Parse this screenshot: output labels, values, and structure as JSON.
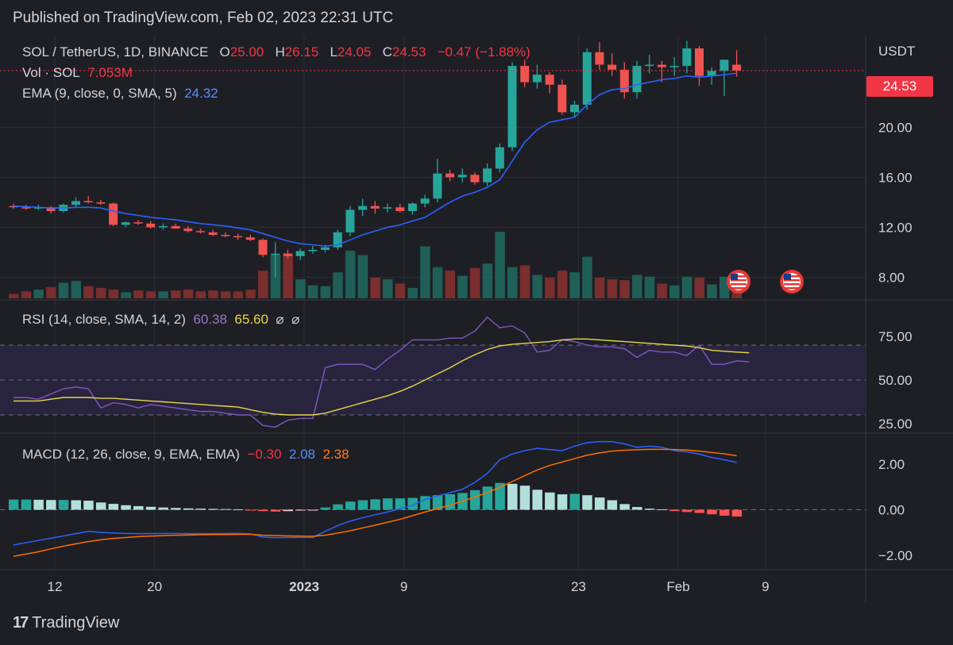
{
  "header": {
    "published": "Published on TradingView.com, Feb 02, 2023 22:31 UTC"
  },
  "legend": {
    "symbol": "SOL / TetherUS, 1D, BINANCE",
    "o_label": "O",
    "o": "25.00",
    "h_label": "H",
    "h": "26.15",
    "l_label": "L",
    "l": "24.05",
    "c_label": "C",
    "c": "24.53",
    "change": "−0.47 (−1.88%)",
    "vol_label": "Vol · SOL",
    "vol": "7.053M",
    "ema_label": "EMA (9, close, 0, SMA, 5)",
    "ema": "24.32",
    "rsi_label": "RSI (14, close, SMA, 14, 2)",
    "rsi": "60.38",
    "rsi_sma": "65.60",
    "rsi_na1": "⌀",
    "rsi_na2": "⌀",
    "macd_label": "MACD (12, 26, close, 9, EMA, EMA)",
    "macd_hist": "−0.30",
    "macd": "2.08",
    "macd_signal": "2.38"
  },
  "price_tag": "24.53",
  "currency": "USDT",
  "footer": {
    "brand": "TradingView",
    "brand_mark": "17"
  },
  "colors": {
    "up": "#26a69a",
    "down": "#ef5350",
    "ema": "#2962ff",
    "rsi": "#7e57c2",
    "rsi_sma": "#e8d74a",
    "macd": "#2962ff",
    "signal": "#ff6d00",
    "bg": "#1e1f25"
  },
  "chart_data": [
    {
      "type": "candlestick",
      "title": "SOL / TetherUS, 1D, BINANCE",
      "x_ticks": [
        {
          "label": "12",
          "day": 0
        },
        {
          "label": "20",
          "day": 8
        },
        {
          "label": "2023",
          "day": 20
        },
        {
          "label": "9",
          "day": 28
        },
        {
          "label": "23",
          "day": 42
        },
        {
          "label": "Feb",
          "day": 50
        },
        {
          "label": "9",
          "day": 57
        }
      ],
      "y_ticks": [
        "8.00",
        "12.00",
        "16.00",
        "20.00"
      ],
      "ylim": [
        6.2,
        27.0
      ],
      "candles": [
        {
          "o": 13.7,
          "h": 13.9,
          "l": 13.5,
          "c": 13.6
        },
        {
          "o": 13.6,
          "h": 13.8,
          "l": 13.4,
          "c": 13.5
        },
        {
          "o": 13.5,
          "h": 13.8,
          "l": 13.4,
          "c": 13.6
        },
        {
          "o": 13.6,
          "h": 13.7,
          "l": 13.1,
          "c": 13.3
        },
        {
          "o": 13.3,
          "h": 13.9,
          "l": 13.2,
          "c": 13.8
        },
        {
          "o": 13.8,
          "h": 14.4,
          "l": 13.6,
          "c": 14.1
        },
        {
          "o": 14.1,
          "h": 14.5,
          "l": 13.9,
          "c": 14.0
        },
        {
          "o": 14.0,
          "h": 14.2,
          "l": 13.8,
          "c": 13.9
        },
        {
          "o": 13.9,
          "h": 14.0,
          "l": 12.1,
          "c": 12.2
        },
        {
          "o": 12.2,
          "h": 12.5,
          "l": 12.0,
          "c": 12.4
        },
        {
          "o": 12.4,
          "h": 12.6,
          "l": 12.2,
          "c": 12.3
        },
        {
          "o": 12.3,
          "h": 12.5,
          "l": 11.9,
          "c": 12.0
        },
        {
          "o": 12.0,
          "h": 12.3,
          "l": 11.8,
          "c": 12.1
        },
        {
          "o": 12.1,
          "h": 12.3,
          "l": 11.9,
          "c": 11.9
        },
        {
          "o": 11.9,
          "h": 12.1,
          "l": 11.6,
          "c": 11.7
        },
        {
          "o": 11.7,
          "h": 11.9,
          "l": 11.5,
          "c": 11.6
        },
        {
          "o": 11.6,
          "h": 11.8,
          "l": 11.3,
          "c": 11.4
        },
        {
          "o": 11.4,
          "h": 11.6,
          "l": 11.2,
          "c": 11.3
        },
        {
          "o": 11.3,
          "h": 11.5,
          "l": 11.0,
          "c": 11.2
        },
        {
          "o": 11.2,
          "h": 11.4,
          "l": 10.9,
          "c": 11.0
        },
        {
          "o": 11.0,
          "h": 11.1,
          "l": 9.6,
          "c": 9.8
        },
        {
          "o": 9.8,
          "h": 10.8,
          "l": 8.0,
          "c": 9.9
        },
        {
          "o": 9.9,
          "h": 10.2,
          "l": 9.5,
          "c": 9.7
        },
        {
          "o": 9.7,
          "h": 10.3,
          "l": 9.4,
          "c": 10.1
        },
        {
          "o": 10.1,
          "h": 10.5,
          "l": 9.9,
          "c": 10.2
        },
        {
          "o": 10.2,
          "h": 10.6,
          "l": 10.0,
          "c": 10.4
        },
        {
          "o": 10.4,
          "h": 11.8,
          "l": 10.2,
          "c": 11.6
        },
        {
          "o": 11.6,
          "h": 13.7,
          "l": 11.3,
          "c": 13.4
        },
        {
          "o": 13.4,
          "h": 14.3,
          "l": 12.9,
          "c": 13.7
        },
        {
          "o": 13.7,
          "h": 14.1,
          "l": 13.1,
          "c": 13.5
        },
        {
          "o": 13.5,
          "h": 13.9,
          "l": 13.2,
          "c": 13.6
        },
        {
          "o": 13.6,
          "h": 13.9,
          "l": 13.2,
          "c": 13.3
        },
        {
          "o": 13.3,
          "h": 14.0,
          "l": 13.0,
          "c": 13.9
        },
        {
          "o": 13.9,
          "h": 14.6,
          "l": 13.6,
          "c": 14.3
        },
        {
          "o": 14.3,
          "h": 17.5,
          "l": 14.0,
          "c": 16.3
        },
        {
          "o": 16.3,
          "h": 16.6,
          "l": 15.7,
          "c": 16.0
        },
        {
          "o": 16.0,
          "h": 16.7,
          "l": 15.6,
          "c": 16.2
        },
        {
          "o": 16.2,
          "h": 16.4,
          "l": 15.4,
          "c": 15.6
        },
        {
          "o": 15.6,
          "h": 17.1,
          "l": 15.3,
          "c": 16.7
        },
        {
          "o": 16.7,
          "h": 18.7,
          "l": 16.4,
          "c": 18.4
        },
        {
          "o": 18.4,
          "h": 25.2,
          "l": 18.1,
          "c": 24.9
        },
        {
          "o": 24.9,
          "h": 25.4,
          "l": 23.2,
          "c": 23.6
        },
        {
          "o": 23.6,
          "h": 25.0,
          "l": 23.1,
          "c": 24.2
        },
        {
          "o": 24.2,
          "h": 24.4,
          "l": 22.7,
          "c": 23.4
        },
        {
          "o": 23.4,
          "h": 23.8,
          "l": 21.0,
          "c": 21.2
        },
        {
          "o": 21.2,
          "h": 22.1,
          "l": 20.8,
          "c": 21.8
        },
        {
          "o": 21.8,
          "h": 26.3,
          "l": 21.4,
          "c": 26.0
        },
        {
          "o": 26.0,
          "h": 26.8,
          "l": 24.6,
          "c": 25.0
        },
        {
          "o": 25.0,
          "h": 25.9,
          "l": 24.1,
          "c": 24.6
        },
        {
          "o": 24.6,
          "h": 25.2,
          "l": 22.3,
          "c": 22.8
        },
        {
          "o": 22.8,
          "h": 25.3,
          "l": 22.3,
          "c": 24.9
        },
        {
          "o": 24.9,
          "h": 25.8,
          "l": 24.3,
          "c": 25.0
        },
        {
          "o": 25.0,
          "h": 25.3,
          "l": 23.6,
          "c": 24.8
        },
        {
          "o": 24.8,
          "h": 25.6,
          "l": 24.1,
          "c": 24.9
        },
        {
          "o": 24.9,
          "h": 26.9,
          "l": 24.3,
          "c": 26.3
        },
        {
          "o": 26.3,
          "h": 26.5,
          "l": 23.3,
          "c": 24.1
        },
        {
          "o": 24.1,
          "h": 24.8,
          "l": 23.4,
          "c": 24.5
        },
        {
          "o": 24.5,
          "h": 25.4,
          "l": 22.5,
          "c": 25.4
        },
        {
          "o": 25.0,
          "h": 26.15,
          "l": 24.05,
          "c": 24.53
        }
      ],
      "ema": [
        13.7,
        13.65,
        13.6,
        13.55,
        13.55,
        13.6,
        13.6,
        13.55,
        13.3,
        13.1,
        12.95,
        12.8,
        12.7,
        12.6,
        12.45,
        12.3,
        12.2,
        12.1,
        11.95,
        11.8,
        11.5,
        11.2,
        10.9,
        10.7,
        10.6,
        10.5,
        10.6,
        11.0,
        11.4,
        11.7,
        12.0,
        12.2,
        12.5,
        12.8,
        13.4,
        14.0,
        14.5,
        14.8,
        15.2,
        15.8,
        17.3,
        18.8,
        19.8,
        20.4,
        20.6,
        20.8,
        21.8,
        22.6,
        23.0,
        23.1,
        23.4,
        23.6,
        23.8,
        23.9,
        24.1,
        24.0,
        24.1,
        24.2,
        24.32
      ],
      "volume": [
        0.5,
        0.8,
        1.0,
        1.3,
        1.8,
        2.0,
        1.4,
        1.2,
        1.0,
        0.7,
        0.9,
        0.8,
        0.8,
        0.9,
        1.0,
        0.8,
        0.9,
        0.8,
        0.8,
        1.0,
        3.2,
        5.0,
        5.2,
        2.2,
        1.5,
        1.4,
        3.0,
        5.5,
        5.0,
        2.4,
        2.2,
        1.7,
        1.2,
        6.0,
        3.6,
        3.2,
        2.6,
        3.5,
        4.0,
        7.7,
        3.6,
        3.8,
        2.7,
        2.4,
        3.2,
        3.0,
        4.8,
        2.4,
        2.2,
        2.1,
        2.7,
        2.5,
        1.7,
        1.5,
        2.5,
        2.4,
        1.6,
        2.5,
        1.0
      ]
    },
    {
      "type": "line",
      "title": "RSI (14, close, SMA, 14, 2)",
      "y_ticks": [
        "25.00",
        "50.00",
        "75.00"
      ],
      "ylim": [
        20,
        95
      ],
      "bands": [
        30,
        50,
        70
      ],
      "series": [
        {
          "name": "RSI",
          "values": [
            40,
            40,
            39,
            42,
            45,
            46,
            45,
            34,
            37,
            36,
            34,
            36,
            35,
            34,
            33,
            32,
            32,
            31,
            30,
            30,
            24,
            23,
            27,
            28,
            28,
            57,
            59,
            59,
            59,
            56,
            62,
            67,
            73,
            73,
            73,
            74,
            74,
            78,
            86,
            80,
            81,
            77,
            66,
            67,
            73,
            72,
            70,
            69,
            69,
            68,
            63,
            67,
            66,
            66,
            64,
            70,
            59,
            59,
            61,
            60.38
          ]
        },
        {
          "name": "RSI SMA",
          "values": [
            38,
            38,
            38,
            39,
            40,
            40,
            40,
            39.5,
            39.5,
            39,
            38.5,
            38,
            37.5,
            37,
            36.5,
            36,
            35.5,
            35,
            34.5,
            33,
            31.5,
            30.5,
            30,
            30,
            30,
            31,
            33,
            35,
            37,
            39,
            41,
            43.5,
            46.5,
            50,
            53.5,
            57,
            61,
            64.5,
            67.5,
            69.5,
            70.5,
            71,
            71.5,
            72,
            73,
            73.5,
            73.5,
            73,
            72.5,
            72,
            71.5,
            71,
            70.5,
            70,
            69.5,
            68.5,
            67,
            66.5,
            66,
            65.6
          ]
        }
      ]
    },
    {
      "type": "bar",
      "title": "MACD (12, 26, close, 9, EMA, EMA)",
      "y_ticks": [
        "2.00",
        "0.00",
        "−2.00"
      ],
      "ylim": [
        -2.6,
        3.3
      ],
      "histogram": [
        0.45,
        0.45,
        0.44,
        0.43,
        0.43,
        0.42,
        0.4,
        0.32,
        0.26,
        0.2,
        0.16,
        0.13,
        0.1,
        0.08,
        0.06,
        0.05,
        0.04,
        0.03,
        0.02,
        -0.02,
        -0.06,
        -0.08,
        -0.06,
        -0.03,
        -0.01,
        0.1,
        0.24,
        0.36,
        0.42,
        0.46,
        0.5,
        0.5,
        0.52,
        0.6,
        0.64,
        0.68,
        0.74,
        0.86,
        1.02,
        1.18,
        1.14,
        1.06,
        0.88,
        0.76,
        0.68,
        0.7,
        0.64,
        0.54,
        0.42,
        0.25,
        0.12,
        0.05,
        0.02,
        -0.06,
        -0.1,
        -0.14,
        -0.2,
        -0.26,
        -0.3
      ],
      "series": [
        {
          "name": "MACD",
          "values": [
            -1.55,
            -1.45,
            -1.35,
            -1.25,
            -1.15,
            -1.05,
            -0.95,
            -1.0,
            -1.02,
            -1.04,
            -1.05,
            -1.05,
            -1.04,
            -1.04,
            -1.05,
            -1.05,
            -1.05,
            -1.04,
            -1.04,
            -1.06,
            -1.2,
            -1.23,
            -1.22,
            -1.22,
            -1.22,
            -0.95,
            -0.7,
            -0.5,
            -0.35,
            -0.22,
            -0.1,
            0.05,
            0.2,
            0.45,
            0.6,
            0.75,
            0.9,
            1.2,
            1.6,
            2.2,
            2.45,
            2.6,
            2.7,
            2.65,
            2.6,
            2.8,
            2.95,
            3.0,
            3.0,
            2.9,
            2.75,
            2.8,
            2.75,
            2.6,
            2.55,
            2.45,
            2.3,
            2.2,
            2.08
          ]
        },
        {
          "name": "Signal",
          "values": [
            -2.05,
            -1.95,
            -1.85,
            -1.72,
            -1.6,
            -1.5,
            -1.4,
            -1.32,
            -1.26,
            -1.22,
            -1.18,
            -1.16,
            -1.14,
            -1.12,
            -1.11,
            -1.1,
            -1.09,
            -1.09,
            -1.08,
            -1.08,
            -1.12,
            -1.14,
            -1.15,
            -1.16,
            -1.17,
            -1.12,
            -1.03,
            -0.93,
            -0.8,
            -0.68,
            -0.55,
            -0.42,
            -0.26,
            -0.1,
            0.05,
            0.2,
            0.38,
            0.56,
            0.76,
            0.98,
            1.24,
            1.5,
            1.75,
            1.95,
            2.1,
            2.25,
            2.4,
            2.5,
            2.58,
            2.62,
            2.64,
            2.66,
            2.66,
            2.65,
            2.63,
            2.58,
            2.52,
            2.46,
            2.38
          ]
        }
      ]
    }
  ]
}
